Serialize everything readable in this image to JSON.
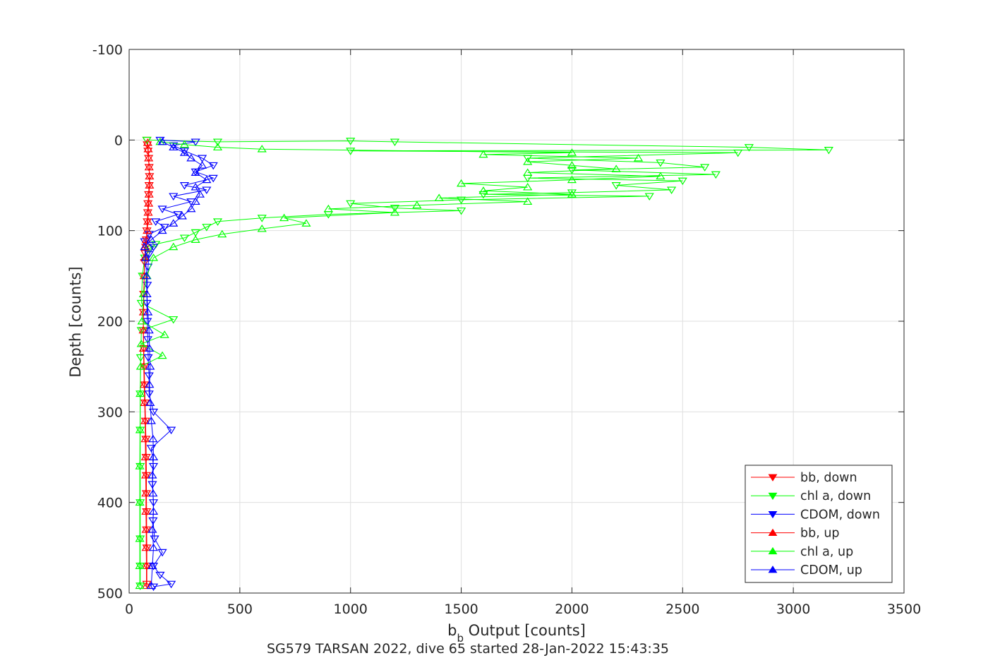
{
  "chart_data": {
    "type": "line",
    "title": "SG579 TARSAN 2022, dive 65 started 28-Jan-2022 15:43:35",
    "xlabel_main": "b",
    "xlabel_sub": "b",
    "xlabel_rest": " Output [counts]",
    "ylabel": "Depth [counts]",
    "xlim": [
      0,
      3500
    ],
    "ylim": [
      -100,
      500
    ],
    "y_reversed": true,
    "grid": true,
    "legend_position": "bottom-right",
    "x_ticks": [
      "0",
      "500",
      "1000",
      "1500",
      "2000",
      "2500",
      "3000",
      "3500"
    ],
    "y_ticks": [
      "-100",
      "0",
      "100",
      "200",
      "300",
      "400",
      "500"
    ],
    "series": [
      {
        "name": "bb, down",
        "color": "#ff0000",
        "marker": "triangle-down",
        "points": [
          [
            80,
            0
          ],
          [
            82,
            5
          ],
          [
            85,
            12
          ],
          [
            88,
            20
          ],
          [
            90,
            30
          ],
          [
            92,
            40
          ],
          [
            90,
            50
          ],
          [
            88,
            60
          ],
          [
            85,
            70
          ],
          [
            84,
            80
          ],
          [
            82,
            90
          ],
          [
            80,
            100
          ],
          [
            78,
            110
          ],
          [
            75,
            118
          ],
          [
            72,
            125
          ],
          [
            70,
            135
          ],
          [
            68,
            150
          ],
          [
            66,
            170
          ],
          [
            65,
            190
          ],
          [
            64,
            210
          ],
          [
            66,
            230
          ],
          [
            68,
            250
          ],
          [
            70,
            270
          ],
          [
            72,
            290
          ],
          [
            74,
            310
          ],
          [
            76,
            330
          ],
          [
            77,
            350
          ],
          [
            78,
            370
          ],
          [
            78,
            390
          ],
          [
            79,
            410
          ],
          [
            79,
            430
          ],
          [
            80,
            450
          ],
          [
            80,
            470
          ],
          [
            80,
            490
          ]
        ]
      },
      {
        "name": "chl a, down",
        "color": "#00ff00",
        "marker": "triangle-down",
        "points": [
          [
            80,
            0
          ],
          [
            400,
            2
          ],
          [
            1000,
            1
          ],
          [
            1200,
            2
          ],
          [
            2800,
            8
          ],
          [
            3160,
            11
          ],
          [
            1000,
            12
          ],
          [
            2750,
            14
          ],
          [
            1800,
            20
          ],
          [
            2400,
            25
          ],
          [
            2600,
            30
          ],
          [
            2000,
            33
          ],
          [
            2650,
            38
          ],
          [
            1800,
            42
          ],
          [
            2500,
            45
          ],
          [
            2200,
            50
          ],
          [
            2450,
            55
          ],
          [
            2000,
            58
          ],
          [
            1600,
            60
          ],
          [
            2350,
            62
          ],
          [
            1500,
            66
          ],
          [
            1000,
            70
          ],
          [
            1200,
            75
          ],
          [
            1500,
            78
          ],
          [
            900,
            82
          ],
          [
            600,
            86
          ],
          [
            400,
            90
          ],
          [
            350,
            96
          ],
          [
            300,
            102
          ],
          [
            250,
            108
          ],
          [
            120,
            115
          ],
          [
            90,
            120
          ],
          [
            70,
            130
          ],
          [
            60,
            150
          ],
          [
            55,
            180
          ],
          [
            200,
            198
          ],
          [
            55,
            210
          ],
          [
            52,
            240
          ],
          [
            50,
            280
          ],
          [
            50,
            320
          ],
          [
            50,
            360
          ],
          [
            50,
            400
          ],
          [
            50,
            440
          ],
          [
            50,
            470
          ],
          [
            50,
            492
          ]
        ]
      },
      {
        "name": "CDOM, down",
        "color": "#0000ff",
        "marker": "triangle-down",
        "points": [
          [
            140,
            0
          ],
          [
            300,
            2
          ],
          [
            200,
            6
          ],
          [
            250,
            12
          ],
          [
            330,
            20
          ],
          [
            380,
            28
          ],
          [
            300,
            35
          ],
          [
            380,
            42
          ],
          [
            250,
            50
          ],
          [
            350,
            55
          ],
          [
            200,
            62
          ],
          [
            280,
            68
          ],
          [
            150,
            76
          ],
          [
            220,
            82
          ],
          [
            120,
            90
          ],
          [
            160,
            96
          ],
          [
            90,
            104
          ],
          [
            70,
            112
          ],
          [
            110,
            118
          ],
          [
            90,
            126
          ],
          [
            85,
            140
          ],
          [
            82,
            160
          ],
          [
            80,
            180
          ],
          [
            82,
            200
          ],
          [
            84,
            220
          ],
          [
            86,
            240
          ],
          [
            90,
            260
          ],
          [
            90,
            280
          ],
          [
            110,
            300
          ],
          [
            190,
            320
          ],
          [
            100,
            340
          ],
          [
            110,
            360
          ],
          [
            105,
            380
          ],
          [
            110,
            400
          ],
          [
            108,
            420
          ],
          [
            115,
            440
          ],
          [
            150,
            455
          ],
          [
            110,
            470
          ],
          [
            140,
            480
          ],
          [
            190,
            490
          ],
          [
            110,
            493
          ]
        ]
      },
      {
        "name": "bb, up",
        "color": "#ff0000",
        "marker": "triangle-up",
        "points": [
          [
            78,
            492
          ],
          [
            78,
            470
          ],
          [
            77,
            450
          ],
          [
            77,
            430
          ],
          [
            76,
            410
          ],
          [
            76,
            390
          ],
          [
            75,
            370
          ],
          [
            74,
            350
          ],
          [
            73,
            330
          ],
          [
            72,
            310
          ],
          [
            70,
            290
          ],
          [
            68,
            270
          ],
          [
            66,
            250
          ],
          [
            65,
            230
          ],
          [
            64,
            210
          ],
          [
            65,
            190
          ],
          [
            66,
            170
          ],
          [
            68,
            150
          ],
          [
            70,
            130
          ],
          [
            73,
            118
          ],
          [
            78,
            110
          ],
          [
            82,
            100
          ],
          [
            85,
            90
          ],
          [
            86,
            80
          ],
          [
            88,
            70
          ],
          [
            90,
            60
          ],
          [
            92,
            50
          ],
          [
            92,
            40
          ],
          [
            90,
            30
          ],
          [
            88,
            20
          ],
          [
            86,
            10
          ],
          [
            84,
            3
          ]
        ]
      },
      {
        "name": "chl a, up",
        "color": "#00ff00",
        "marker": "triangle-up",
        "points": [
          [
            48,
            492
          ],
          [
            48,
            470
          ],
          [
            48,
            440
          ],
          [
            48,
            400
          ],
          [
            48,
            360
          ],
          [
            49,
            320
          ],
          [
            50,
            280
          ],
          [
            52,
            250
          ],
          [
            150,
            238
          ],
          [
            55,
            225
          ],
          [
            160,
            215
          ],
          [
            58,
            200
          ],
          [
            65,
            170
          ],
          [
            80,
            150
          ],
          [
            110,
            130
          ],
          [
            200,
            118
          ],
          [
            300,
            110
          ],
          [
            420,
            104
          ],
          [
            600,
            98
          ],
          [
            800,
            92
          ],
          [
            700,
            86
          ],
          [
            1200,
            80
          ],
          [
            900,
            76
          ],
          [
            1300,
            72
          ],
          [
            1800,
            68
          ],
          [
            1400,
            64
          ],
          [
            2000,
            60
          ],
          [
            1600,
            56
          ],
          [
            1800,
            52
          ],
          [
            1500,
            48
          ],
          [
            2000,
            44
          ],
          [
            2400,
            40
          ],
          [
            1800,
            36
          ],
          [
            2200,
            32
          ],
          [
            2000,
            28
          ],
          [
            1800,
            24
          ],
          [
            2300,
            20
          ],
          [
            1600,
            16
          ],
          [
            2000,
            14
          ],
          [
            600,
            10
          ],
          [
            400,
            8
          ],
          [
            250,
            5
          ],
          [
            140,
            2
          ]
        ]
      },
      {
        "name": "CDOM, up",
        "color": "#0000ff",
        "marker": "triangle-up",
        "points": [
          [
            100,
            492
          ],
          [
            105,
            470
          ],
          [
            110,
            450
          ],
          [
            105,
            430
          ],
          [
            110,
            410
          ],
          [
            108,
            390
          ],
          [
            105,
            370
          ],
          [
            110,
            350
          ],
          [
            108,
            330
          ],
          [
            100,
            310
          ],
          [
            95,
            290
          ],
          [
            92,
            270
          ],
          [
            95,
            250
          ],
          [
            92,
            230
          ],
          [
            90,
            210
          ],
          [
            85,
            190
          ],
          [
            80,
            170
          ],
          [
            78,
            150
          ],
          [
            75,
            130
          ],
          [
            70,
            118
          ],
          [
            100,
            110
          ],
          [
            150,
            100
          ],
          [
            200,
            92
          ],
          [
            240,
            84
          ],
          [
            280,
            76
          ],
          [
            300,
            68
          ],
          [
            320,
            60
          ],
          [
            300,
            52
          ],
          [
            350,
            44
          ],
          [
            300,
            36
          ],
          [
            330,
            28
          ],
          [
            280,
            20
          ],
          [
            250,
            14
          ],
          [
            200,
            8
          ],
          [
            150,
            2
          ]
        ]
      }
    ]
  }
}
